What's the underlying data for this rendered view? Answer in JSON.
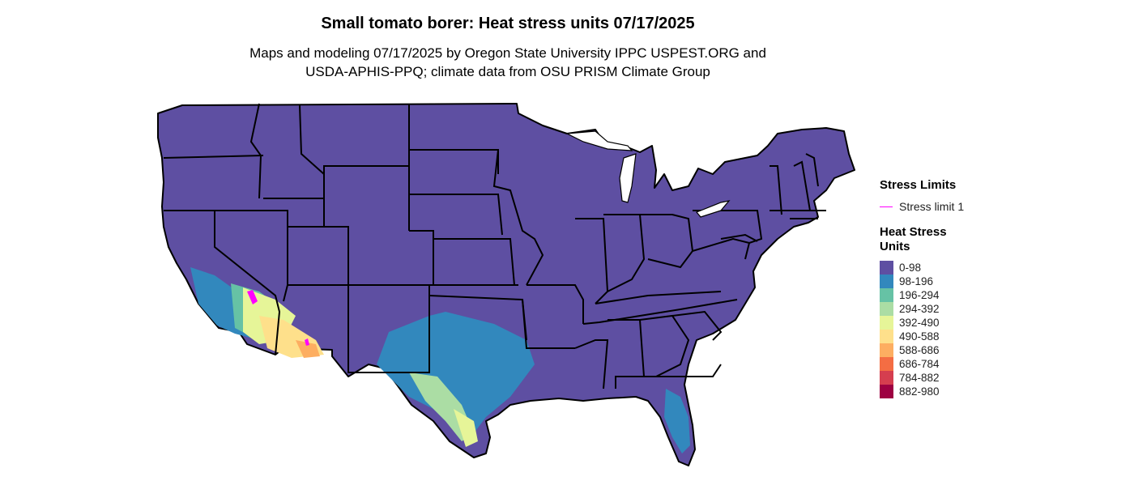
{
  "title": "Small tomato borer: Heat stress units 07/17/2025",
  "subtitle_line1": "Maps and modeling 07/17/2025 by Oregon State University IPPC USPEST.ORG and",
  "subtitle_line2": "USDA-APHIS-PPQ; climate data from OSU PRISM Climate Group",
  "legend": {
    "stress_title": "Stress Limits",
    "stress_items": [
      {
        "label": "Stress limit 1",
        "color": "#ff00ff"
      }
    ],
    "heat_title": "Heat Stress Units",
    "heat_items": [
      {
        "label": "0-98",
        "color": "#5e4fa2"
      },
      {
        "label": "98-196",
        "color": "#3288bd"
      },
      {
        "label": "196-294",
        "color": "#66c2a5"
      },
      {
        "label": "294-392",
        "color": "#abdda4"
      },
      {
        "label": "392-490",
        "color": "#e6f598"
      },
      {
        "label": "490-588",
        "color": "#fee08b"
      },
      {
        "label": "588-686",
        "color": "#fdae61"
      },
      {
        "label": "686-784",
        "color": "#f46d43"
      },
      {
        "label": "784-882",
        "color": "#d53e4f"
      },
      {
        "label": "882-980",
        "color": "#9e0142"
      }
    ]
  }
}
